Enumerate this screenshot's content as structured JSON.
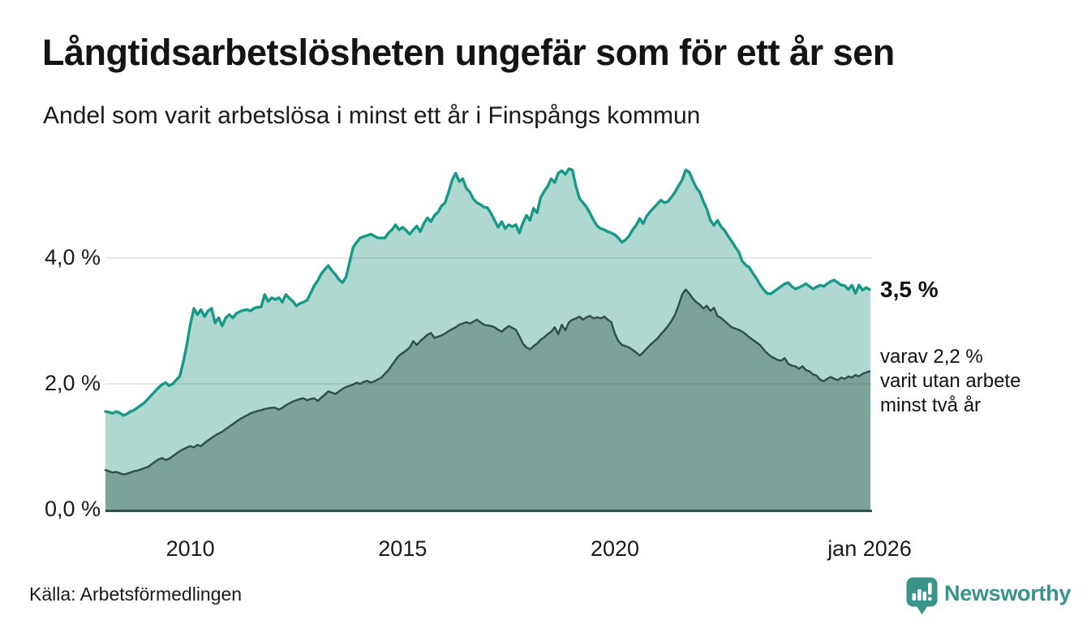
{
  "header": {
    "title": "Långtidsarbetslösheten ungefär som för ett år sen",
    "subtitle": "Andel som varit arbetslösa i minst ett år i Finspångs kommun"
  },
  "colors": {
    "total_line": "#189888",
    "total_fill": "#afd8d1",
    "two_year_line": "#2e4f49",
    "two_year_fill": "#7ba39a",
    "baseline": "#31524c",
    "gridline": "rgba(40,40,40,0.14)",
    "brand_teal": "#38938a"
  },
  "chart_data": {
    "type": "area",
    "title": "Långtidsarbetslösheten ungefär som för ett år sen",
    "xlabel": "",
    "ylabel": "Andel som varit arbetslösa i minst ett år (%)",
    "x_unit": "monthly",
    "x_start_year": 2008,
    "x_end_label": "jan 2026",
    "ylim": [
      0,
      5.6
    ],
    "grid": "horizontal",
    "legend_position": "right-annotations",
    "yticks": [
      {
        "value": 0,
        "label": "0,0 %"
      },
      {
        "value": 2,
        "label": "2,0 %"
      },
      {
        "value": 4,
        "label": "4,0 %"
      }
    ],
    "xticks": [
      {
        "year": 2010,
        "label": "2010"
      },
      {
        "year": 2015,
        "label": "2015"
      },
      {
        "year": 2020,
        "label": "2020"
      },
      {
        "year": 2026,
        "label": "jan 2026"
      }
    ],
    "series": [
      {
        "name": "Andel arbetslösa minst ett år",
        "end_value": 3.5,
        "end_label": "3,5 %",
        "values": [
          1.56,
          1.55,
          1.53,
          1.56,
          1.54,
          1.5,
          1.52,
          1.56,
          1.58,
          1.62,
          1.66,
          1.7,
          1.76,
          1.82,
          1.88,
          1.94,
          1.99,
          2.02,
          1.97,
          2.0,
          2.06,
          2.12,
          2.35,
          2.62,
          2.95,
          3.2,
          3.1,
          3.18,
          3.07,
          3.16,
          3.2,
          2.97,
          3.05,
          2.92,
          3.05,
          3.1,
          3.05,
          3.12,
          3.15,
          3.17,
          3.18,
          3.16,
          3.2,
          3.22,
          3.22,
          3.42,
          3.31,
          3.37,
          3.34,
          3.37,
          3.3,
          3.42,
          3.36,
          3.31,
          3.24,
          3.28,
          3.3,
          3.33,
          3.44,
          3.56,
          3.64,
          3.75,
          3.82,
          3.88,
          3.8,
          3.74,
          3.66,
          3.61,
          3.7,
          3.93,
          4.17,
          4.25,
          4.32,
          4.34,
          4.36,
          4.38,
          4.35,
          4.32,
          4.32,
          4.32,
          4.4,
          4.45,
          4.53,
          4.45,
          4.49,
          4.44,
          4.38,
          4.45,
          4.51,
          4.42,
          4.55,
          4.64,
          4.58,
          4.68,
          4.73,
          4.83,
          4.88,
          5.05,
          5.24,
          5.35,
          5.22,
          5.26,
          5.11,
          5.05,
          4.94,
          4.88,
          4.85,
          4.81,
          4.8,
          4.71,
          4.6,
          4.49,
          4.58,
          4.47,
          4.53,
          4.5,
          4.53,
          4.4,
          4.56,
          4.68,
          4.6,
          4.79,
          4.72,
          4.96,
          5.06,
          5.14,
          5.26,
          5.2,
          5.35,
          5.39,
          5.33,
          5.42,
          5.4,
          5.14,
          4.95,
          4.88,
          4.81,
          4.71,
          4.6,
          4.51,
          4.47,
          4.45,
          4.42,
          4.4,
          4.37,
          4.32,
          4.25,
          4.29,
          4.35,
          4.45,
          4.52,
          4.63,
          4.55,
          4.67,
          4.74,
          4.8,
          4.86,
          4.92,
          4.88,
          4.9,
          4.97,
          5.05,
          5.15,
          5.24,
          5.4,
          5.37,
          5.24,
          5.12,
          5.05,
          4.9,
          4.78,
          4.6,
          4.52,
          4.6,
          4.5,
          4.44,
          4.35,
          4.27,
          4.18,
          4.1,
          3.95,
          3.89,
          3.85,
          3.76,
          3.68,
          3.58,
          3.5,
          3.44,
          3.43,
          3.47,
          3.51,
          3.55,
          3.59,
          3.61,
          3.55,
          3.51,
          3.53,
          3.56,
          3.59,
          3.55,
          3.51,
          3.54,
          3.57,
          3.55,
          3.59,
          3.63,
          3.65,
          3.61,
          3.57,
          3.56,
          3.5,
          3.57,
          3.44,
          3.57,
          3.49,
          3.53,
          3.5
        ]
      },
      {
        "name": "varav utan arbete minst två år",
        "end_value": 2.2,
        "end_label": "varav 2,2 % varit utan arbete minst två år",
        "values": [
          0.63,
          0.61,
          0.59,
          0.6,
          0.58,
          0.56,
          0.57,
          0.59,
          0.61,
          0.62,
          0.64,
          0.66,
          0.68,
          0.72,
          0.76,
          0.8,
          0.82,
          0.79,
          0.81,
          0.85,
          0.89,
          0.93,
          0.96,
          0.99,
          1.01,
          0.99,
          1.03,
          1.01,
          1.06,
          1.1,
          1.14,
          1.18,
          1.21,
          1.24,
          1.28,
          1.32,
          1.36,
          1.4,
          1.44,
          1.47,
          1.5,
          1.53,
          1.55,
          1.57,
          1.58,
          1.6,
          1.61,
          1.62,
          1.62,
          1.59,
          1.62,
          1.66,
          1.69,
          1.72,
          1.74,
          1.76,
          1.77,
          1.74,
          1.76,
          1.77,
          1.73,
          1.78,
          1.83,
          1.88,
          1.86,
          1.84,
          1.88,
          1.92,
          1.95,
          1.97,
          1.99,
          2.02,
          2.0,
          2.03,
          2.05,
          2.02,
          2.04,
          2.07,
          2.1,
          2.16,
          2.22,
          2.3,
          2.38,
          2.45,
          2.49,
          2.53,
          2.58,
          2.68,
          2.62,
          2.68,
          2.73,
          2.78,
          2.81,
          2.73,
          2.75,
          2.77,
          2.8,
          2.84,
          2.87,
          2.9,
          2.94,
          2.96,
          2.98,
          2.96,
          2.99,
          3.02,
          2.98,
          2.94,
          2.93,
          2.92,
          2.9,
          2.86,
          2.83,
          2.88,
          2.92,
          2.89,
          2.86,
          2.76,
          2.64,
          2.58,
          2.55,
          2.6,
          2.64,
          2.7,
          2.74,
          2.79,
          2.83,
          2.9,
          2.79,
          2.94,
          2.85,
          2.98,
          3.02,
          3.04,
          3.07,
          3.02,
          3.06,
          3.08,
          3.04,
          3.06,
          3.04,
          3.07,
          3.02,
          2.98,
          2.8,
          2.68,
          2.62,
          2.6,
          2.58,
          2.54,
          2.5,
          2.45,
          2.5,
          2.56,
          2.62,
          2.67,
          2.72,
          2.79,
          2.85,
          2.92,
          3.0,
          3.1,
          3.25,
          3.42,
          3.5,
          3.44,
          3.36,
          3.3,
          3.26,
          3.2,
          3.24,
          3.16,
          3.21,
          3.08,
          3.05,
          3.0,
          2.95,
          2.9,
          2.88,
          2.86,
          2.83,
          2.79,
          2.74,
          2.7,
          2.66,
          2.62,
          2.55,
          2.49,
          2.44,
          2.41,
          2.38,
          2.37,
          2.41,
          2.32,
          2.29,
          2.28,
          2.24,
          2.28,
          2.22,
          2.2,
          2.15,
          2.13,
          2.07,
          2.04,
          2.08,
          2.11,
          2.08,
          2.06,
          2.1,
          2.08,
          2.12,
          2.1,
          2.14,
          2.12,
          2.16,
          2.18,
          2.2
        ]
      }
    ]
  },
  "annotations": {
    "total_label": "3,5 %",
    "two_year_lines": [
      "varav 2,2 %",
      "varit utan arbete",
      "minst två år"
    ]
  },
  "footer": {
    "source": "Källa: Arbetsförmedlingen",
    "brand": "Newsworthy"
  }
}
